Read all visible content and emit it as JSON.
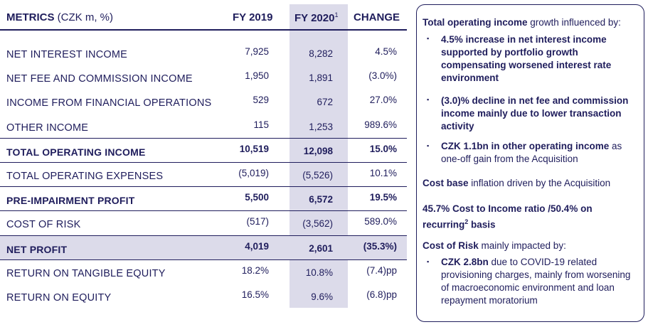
{
  "table": {
    "header": {
      "metrics_bold": "METRICS",
      "metrics_unit": " (CZK m, %)",
      "fy2019": "FY 2019",
      "fy2020": "FY 2020",
      "fy2020_sup": "1",
      "change": "CHANGE"
    },
    "rows": [
      {
        "label": "NET INTEREST INCOME",
        "fy2019": "7,925",
        "fy2020": "8,282",
        "change": "4.5%"
      },
      {
        "label": "NET FEE AND COMMISSION INCOME",
        "fy2019": "1,950",
        "fy2020": "1,891",
        "change": "(3.0%)"
      },
      {
        "label": "INCOME FROM FINANCIAL OPERATIONS",
        "fy2019": "529",
        "fy2020": "672",
        "change": "27.0%"
      },
      {
        "label": "OTHER INCOME",
        "fy2019": "115",
        "fy2020": "1,253",
        "change": "989.6%"
      },
      {
        "label": "TOTAL OPERATING INCOME",
        "fy2019": "10,519",
        "fy2020": "12,098",
        "change": "15.0%"
      },
      {
        "label": "TOTAL OPERATING EXPENSES",
        "fy2019": "(5,019)",
        "fy2020": "(5,526)",
        "change": "10.1%"
      },
      {
        "label": "PRE-IMPAIRMENT PROFIT",
        "fy2019": "5,500",
        "fy2020": "6,572",
        "change": "19.5%"
      },
      {
        "label": "COST OF RISK",
        "fy2019": "(517)",
        "fy2020": "(3,562)",
        "change": "589.0%"
      },
      {
        "label": "NET PROFIT",
        "fy2019": "4,019",
        "fy2020": "2,601",
        "change": "(35.3%)"
      },
      {
        "label": "RETURN ON TANGIBLE EQUITY",
        "fy2019": "18.2%",
        "fy2020": "10.8%",
        "change": "(7.4)pp"
      },
      {
        "label": "RETURN ON EQUITY",
        "fy2019": "16.5%",
        "fy2020": "9.6%",
        "change": "(6.8)pp"
      }
    ]
  },
  "panel": {
    "income_heading_bold": "Total operating income",
    "income_heading_rest": " growth influenced by:",
    "bullet1": "4.5% increase in net interest income supported by portfolio growth compensating worsened interest rate environment",
    "bullet2": "(3.0)% decline in net fee and commission income mainly due to lower transaction activity",
    "bullet3_bold": "CZK 1.1bn in other operating income",
    "bullet3_rest": " as one-off gain from the Acquisition",
    "cost_base_bold": "Cost base",
    "cost_base_rest": " inflation driven by the Acquisition",
    "ratio_line1": "45.7% Cost to Income ratio /50.4% on",
    "ratio_line2_pre": "recurring",
    "ratio_line2_sup": "2",
    "ratio_line2_post": " basis",
    "risk_heading_bold": "Cost of Risk",
    "risk_heading_rest": " mainly impacted by:",
    "bullet4_bold": "CZK 2.8bn",
    "bullet4_rest": " due to COVID-19 related provisioning charges, mainly from worsening of macroeconomic environment and loan repayment moratorium",
    "bullet_glyph": "▪"
  },
  "colors": {
    "text": "#1f1d5c",
    "shade": "#dcdbea",
    "border": "#1f1d5c"
  }
}
